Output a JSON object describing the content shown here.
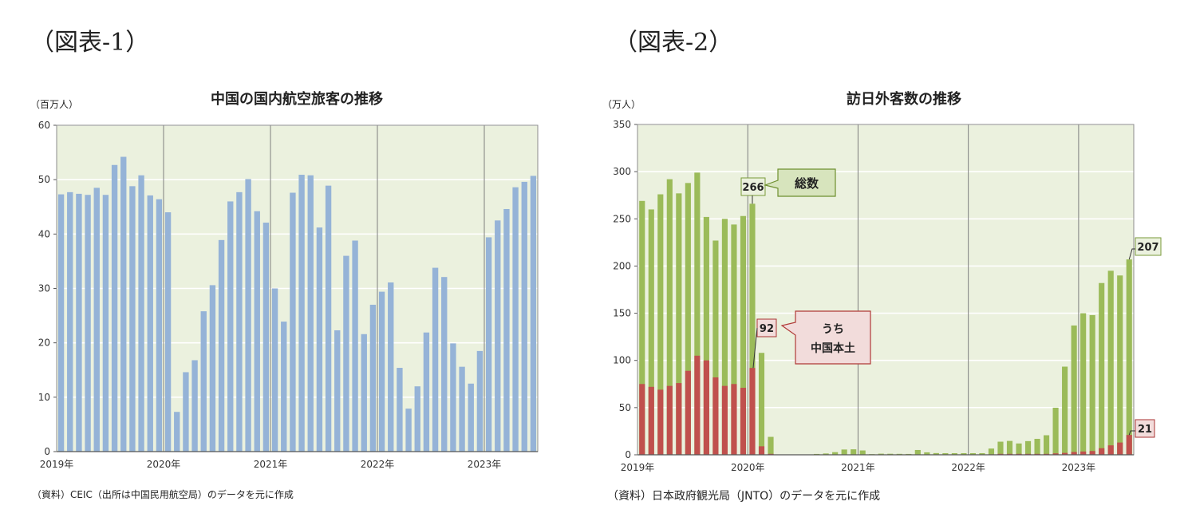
{
  "panels": [
    {
      "label": "（図表-1）"
    },
    {
      "label": "（図表-2）"
    }
  ],
  "chart_data": [
    {
      "type": "bar",
      "title": "中国の国内航空旅客の推移",
      "unit": "（百万人）",
      "source": "（資料）CEIC（出所は中国民用航空局）のデータを元に作成",
      "ylim": [
        0,
        60
      ],
      "yticks": [
        0,
        10,
        20,
        30,
        40,
        50,
        60
      ],
      "grid": true,
      "year_labels": [
        "2019年",
        "2020年",
        "2021年",
        "2022年",
        "2023年"
      ],
      "bar_color": "#95b3d7",
      "plot_bg": "#ebf1de",
      "series": [
        {
          "values": [
            47.3,
            47.7,
            47.4,
            47.2,
            48.5,
            47.2,
            52.7,
            54.2,
            48.8,
            50.8,
            47.1,
            46.4,
            44.0,
            7.3,
            14.6,
            16.8,
            25.8,
            30.6,
            38.9,
            46.0,
            47.7,
            50.1,
            44.2,
            42.1,
            30.0,
            23.9,
            47.6,
            50.9,
            50.8,
            41.2,
            48.9,
            22.3,
            36.0,
            38.8,
            21.6,
            27.0,
            29.4,
            31.1,
            15.4,
            7.9,
            12.0,
            21.9,
            33.8,
            32.1,
            19.9,
            15.6,
            12.5,
            18.5,
            39.4,
            42.5,
            44.6,
            48.6,
            49.6,
            50.7
          ]
        }
      ]
    },
    {
      "type": "bar",
      "title": "訪日外客数の推移",
      "unit": "（万人）",
      "source": "（資料）日本政府観光局（JNTO）のデータを元に作成",
      "ylim": [
        0,
        350
      ],
      "yticks": [
        0,
        50,
        100,
        150,
        200,
        250,
        300,
        350
      ],
      "grid": true,
      "year_labels": [
        "2019年",
        "2020年",
        "2021年",
        "2022年",
        "2023年"
      ],
      "plot_bg": "#ebf1de",
      "series": [
        {
          "name": "総数",
          "color": "#9bbb59",
          "values": [
            269,
            260,
            276,
            292,
            277,
            288,
            299,
            252,
            227,
            250,
            244,
            253,
            266,
            108,
            19,
            0.3,
            0.2,
            0.3,
            0.4,
            0.9,
            1.4,
            2.8,
            5.6,
            5.8,
            4.6,
            0.7,
            1.2,
            1.1,
            1.0,
            0.9,
            5.1,
            2.6,
            1.8,
            1.7,
            1.7,
            1.7,
            1.7,
            1.7,
            6.6,
            13.9,
            14.7,
            12.0,
            14.5,
            16.9,
            20.7,
            49.9,
            93.4,
            137.0,
            150,
            148,
            182,
            195,
            190,
            207
          ]
        },
        {
          "name": "うち中国本土",
          "color": "#c0504d",
          "values": [
            75,
            72,
            69,
            73,
            76,
            89,
            105,
            100,
            82,
            73,
            75,
            71,
            92,
            9,
            1,
            0,
            0,
            0,
            0,
            0,
            0,
            0,
            0,
            0,
            0,
            0,
            0,
            0,
            0,
            0,
            0,
            0,
            0,
            0,
            0,
            0,
            0,
            0,
            0.5,
            1,
            1,
            1,
            1,
            1,
            1,
            1.5,
            2,
            3,
            3.5,
            4,
            7,
            10,
            13,
            21
          ]
        }
      ],
      "annotations": {
        "total_last_2019": "266",
        "total_latest": "207",
        "china_last_2019": "92",
        "china_latest": "21",
        "callout_total": "総数",
        "callout_china": [
          "うち",
          "中国本土"
        ]
      }
    }
  ]
}
